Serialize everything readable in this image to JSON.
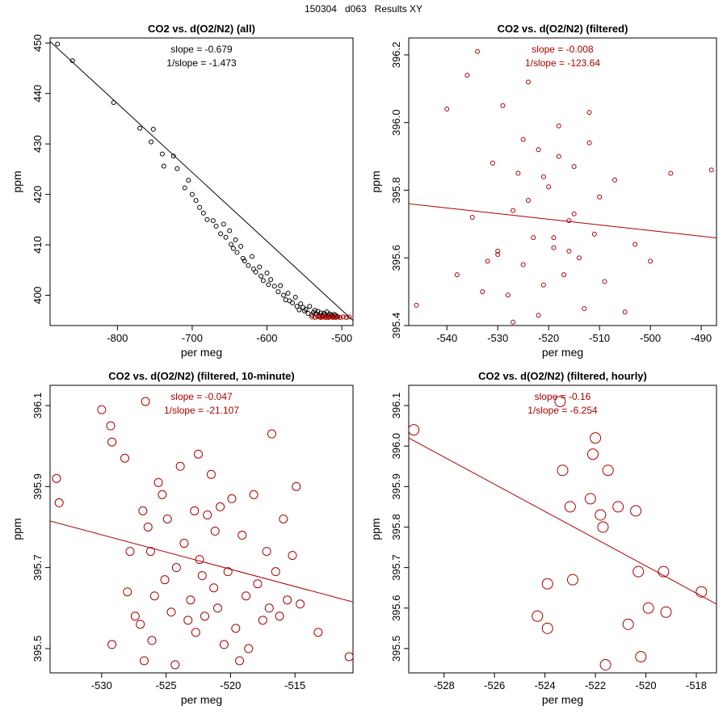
{
  "page": {
    "title": "150304   d063   Results XY"
  },
  "colors": {
    "black": "#000000",
    "red": "#aa0000"
  },
  "chart_data": [
    {
      "type": "scatter",
      "title": "CO2 vs. d(O2/N2) (all)",
      "xlabel": "per meg",
      "ylabel": "ppm",
      "xlim": [
        -890,
        -485
      ],
      "ylim": [
        394,
        451
      ],
      "xticks": [
        -800,
        -700,
        -600,
        -500
      ],
      "yticks": [
        400,
        410,
        420,
        430,
        440,
        450
      ],
      "slope_text": "slope = -0.679",
      "inv_slope_text": "1/slope = -1.473",
      "fit_line": {
        "x": [
          -890,
          -485
        ],
        "y": [
          450.3,
          395.0
        ]
      },
      "series": [
        {
          "name": "all",
          "color": "black",
          "x": [
            -880,
            -860,
            -805,
            -770,
            -755,
            -752,
            -740,
            -738,
            -725,
            -720,
            -710,
            -705,
            -700,
            -695,
            -690,
            -685,
            -680,
            -672,
            -668,
            -662,
            -658,
            -655,
            -650,
            -648,
            -645,
            -642,
            -640,
            -635,
            -632,
            -630,
            -625,
            -620,
            -618,
            -615,
            -610,
            -608,
            -605,
            -600,
            -598,
            -595,
            -590,
            -585,
            -582,
            -578,
            -575,
            -572,
            -570,
            -566,
            -562,
            -560,
            -557,
            -555,
            -552,
            -550,
            -548,
            -545,
            -543,
            -540,
            -538,
            -536,
            -534,
            -532,
            -530,
            -528,
            -526,
            -524,
            -522,
            -520,
            -518,
            -516,
            -514,
            -512,
            -510,
            -508,
            -506
          ],
          "y": [
            449.8,
            446.5,
            438.2,
            433.1,
            430.4,
            432.9,
            428.0,
            425.6,
            427.6,
            425.1,
            421.3,
            422.8,
            420.0,
            418.8,
            417.4,
            416.3,
            415.0,
            414.8,
            413.7,
            412.2,
            414.1,
            411.5,
            412.8,
            410.1,
            409.3,
            411.0,
            408.5,
            409.7,
            407.3,
            406.8,
            405.9,
            407.7,
            405.2,
            404.6,
            405.6,
            403.8,
            402.9,
            404.4,
            402.1,
            403.1,
            401.8,
            400.7,
            401.9,
            400.0,
            399.1,
            400.4,
            398.9,
            398.5,
            399.6,
            397.8,
            397.1,
            398.3,
            397.6,
            396.9,
            397.2,
            396.4,
            397.8,
            396.1,
            396.6,
            397.0,
            396.3,
            396.8,
            396.0,
            396.5,
            395.9,
            396.4,
            396.2,
            396.7,
            396.0,
            396.3,
            396.1,
            395.9,
            396.2,
            396.0,
            395.8
          ]
        },
        {
          "name": "filtered",
          "color": "red",
          "x": [
            -540,
            -536,
            -533,
            -530,
            -528,
            -526,
            -524,
            -522,
            -520,
            -518,
            -516,
            -514,
            -512,
            -510,
            -508,
            -505,
            -502,
            -498,
            -494,
            -490
          ],
          "y": [
            395.7,
            395.6,
            395.8,
            395.7,
            395.6,
            395.7,
            395.8,
            395.6,
            395.7,
            395.6,
            395.7,
            395.8,
            395.6,
            395.7,
            395.6,
            395.7,
            395.6,
            395.7,
            395.6,
            395.7
          ]
        }
      ]
    },
    {
      "type": "scatter",
      "title": "CO2 vs. d(O2/N2) (filtered)",
      "xlabel": "per meg",
      "ylabel": "ppm",
      "xlim": [
        -547.5,
        -487
      ],
      "ylim": [
        395.4,
        396.25
      ],
      "xticks": [
        -540,
        -530,
        -520,
        -510,
        -500,
        -490
      ],
      "yticks": [
        395.4,
        395.6,
        395.8,
        396.0,
        396.2
      ],
      "slope_text": "slope = -0.008",
      "inv_slope_text": "1/slope = -123.64",
      "fit_line": {
        "x": [
          -547.5,
          -487
        ],
        "y": [
          395.76,
          395.659
        ]
      },
      "series": [
        {
          "name": "filtered",
          "color": "red",
          "x": [
            -546,
            -540,
            -538,
            -536,
            -535,
            -534,
            -532,
            -531,
            -530,
            -529,
            -528,
            -527,
            -526,
            -525,
            -524,
            -523,
            -522,
            -521,
            -520,
            -519,
            -518,
            -517,
            -516,
            -515,
            -514,
            -513,
            -512,
            -511,
            -510,
            -509,
            -507,
            -505,
            -503,
            -500,
            -496,
            -488,
            -530,
            -525,
            -522,
            -518,
            -515,
            -527,
            -521,
            -516,
            -512,
            -533,
            -524,
            -519
          ],
          "y": [
            395.46,
            396.04,
            395.55,
            396.14,
            395.72,
            396.21,
            395.59,
            395.88,
            395.62,
            396.05,
            395.49,
            395.74,
            395.85,
            395.58,
            396.12,
            395.66,
            395.92,
            395.52,
            395.81,
            395.63,
            395.99,
            395.55,
            395.71,
            395.87,
            395.6,
            395.45,
            395.94,
            395.67,
            395.78,
            395.53,
            395.83,
            395.44,
            395.64,
            395.59,
            395.85,
            395.86,
            395.61,
            395.95,
            395.43,
            395.9,
            395.73,
            395.41,
            395.84,
            395.62,
            396.03,
            395.5,
            395.77,
            395.66
          ]
        }
      ]
    },
    {
      "type": "scatter",
      "title": "CO2 vs. d(O2/N2) (filtered, 10-minute)",
      "xlabel": "per meg",
      "ylabel": "ppm",
      "xlim": [
        -534,
        -510.5
      ],
      "ylim": [
        395.44,
        396.15
      ],
      "xticks": [
        -530,
        -525,
        -520,
        -515
      ],
      "yticks": [
        395.5,
        395.7,
        395.9,
        396.1
      ],
      "slope_text": "slope = -0.047",
      "inv_slope_text": "1/slope = -21.107",
      "fit_line": {
        "x": [
          -534,
          -510.5
        ],
        "y": [
          395.815,
          395.615
        ]
      },
      "series": [
        {
          "name": "10-minute",
          "color": "red",
          "x": [
            -533.5,
            -533.3,
            -530,
            -529.3,
            -529.2,
            -529.2,
            -528.2,
            -528,
            -527.8,
            -527.4,
            -527,
            -526.8,
            -526.7,
            -526.6,
            -526.4,
            -526.2,
            -526.1,
            -525.9,
            -525.6,
            -525.3,
            -525.1,
            -524.9,
            -524.6,
            -524.3,
            -524.2,
            -523.9,
            -523.6,
            -523.3,
            -523.1,
            -522.8,
            -522.7,
            -522.5,
            -522.4,
            -522.2,
            -522.0,
            -521.8,
            -521.5,
            -521.3,
            -521.2,
            -521.0,
            -520.8,
            -520.5,
            -520.2,
            -519.9,
            -519.6,
            -519.3,
            -519.1,
            -518.8,
            -518.6,
            -518.2,
            -517.9,
            -517.5,
            -517.2,
            -517.0,
            -516.8,
            -516.5,
            -516.2,
            -515.9,
            -515.6,
            -515.2,
            -514.9,
            -514.6,
            -513.2,
            -510.8
          ],
          "y": [
            395.92,
            395.86,
            396.09,
            396.05,
            396.01,
            395.51,
            395.97,
            395.64,
            395.74,
            395.58,
            395.56,
            395.84,
            395.47,
            396.11,
            395.8,
            395.74,
            395.52,
            395.63,
            395.91,
            395.88,
            395.67,
            395.82,
            395.59,
            395.46,
            395.7,
            395.95,
            395.76,
            395.57,
            395.62,
            395.84,
            395.54,
            395.98,
            395.72,
            395.68,
            395.58,
            395.83,
            395.93,
            395.65,
            395.79,
            395.6,
            395.85,
            395.51,
            395.69,
            395.87,
            395.55,
            395.47,
            395.78,
            395.63,
            395.5,
            395.88,
            395.66,
            395.57,
            395.74,
            395.6,
            396.03,
            395.69,
            395.58,
            395.82,
            395.62,
            395.73,
            395.9,
            395.61,
            395.54,
            395.48
          ]
        }
      ]
    },
    {
      "type": "scatter",
      "title": "CO2 vs. d(O2/N2) (filtered, hourly)",
      "xlabel": "per meg",
      "ylabel": "ppm",
      "xlim": [
        -529.4,
        -517.2
      ],
      "ylim": [
        395.44,
        396.15
      ],
      "xticks": [
        -528,
        -526,
        -524,
        -522,
        -520,
        -518
      ],
      "yticks": [
        395.5,
        395.6,
        395.7,
        395.8,
        395.9,
        396.0,
        396.1
      ],
      "slope_text": "slope = -0.16",
      "inv_slope_text": "1/slope = -6.254",
      "fit_line": {
        "x": [
          -529.4,
          -517.2
        ],
        "y": [
          396.02,
          395.61
        ]
      },
      "series": [
        {
          "name": "hourly",
          "color": "red",
          "x": [
            -529.2,
            -524.3,
            -523.9,
            -523.9,
            -523.4,
            -523.3,
            -523.0,
            -522.9,
            -522.2,
            -522.1,
            -522.0,
            -521.8,
            -521.7,
            -521.6,
            -521.5,
            -521.1,
            -520.7,
            -520.4,
            -520.3,
            -520.2,
            -519.9,
            -519.3,
            -519.2,
            -517.8
          ],
          "y": [
            396.04,
            395.58,
            395.55,
            395.66,
            396.11,
            395.94,
            395.85,
            395.67,
            395.87,
            395.98,
            396.02,
            395.83,
            395.8,
            395.46,
            395.94,
            395.85,
            395.56,
            395.84,
            395.69,
            395.48,
            395.6,
            395.69,
            395.59,
            395.64
          ]
        }
      ]
    }
  ]
}
